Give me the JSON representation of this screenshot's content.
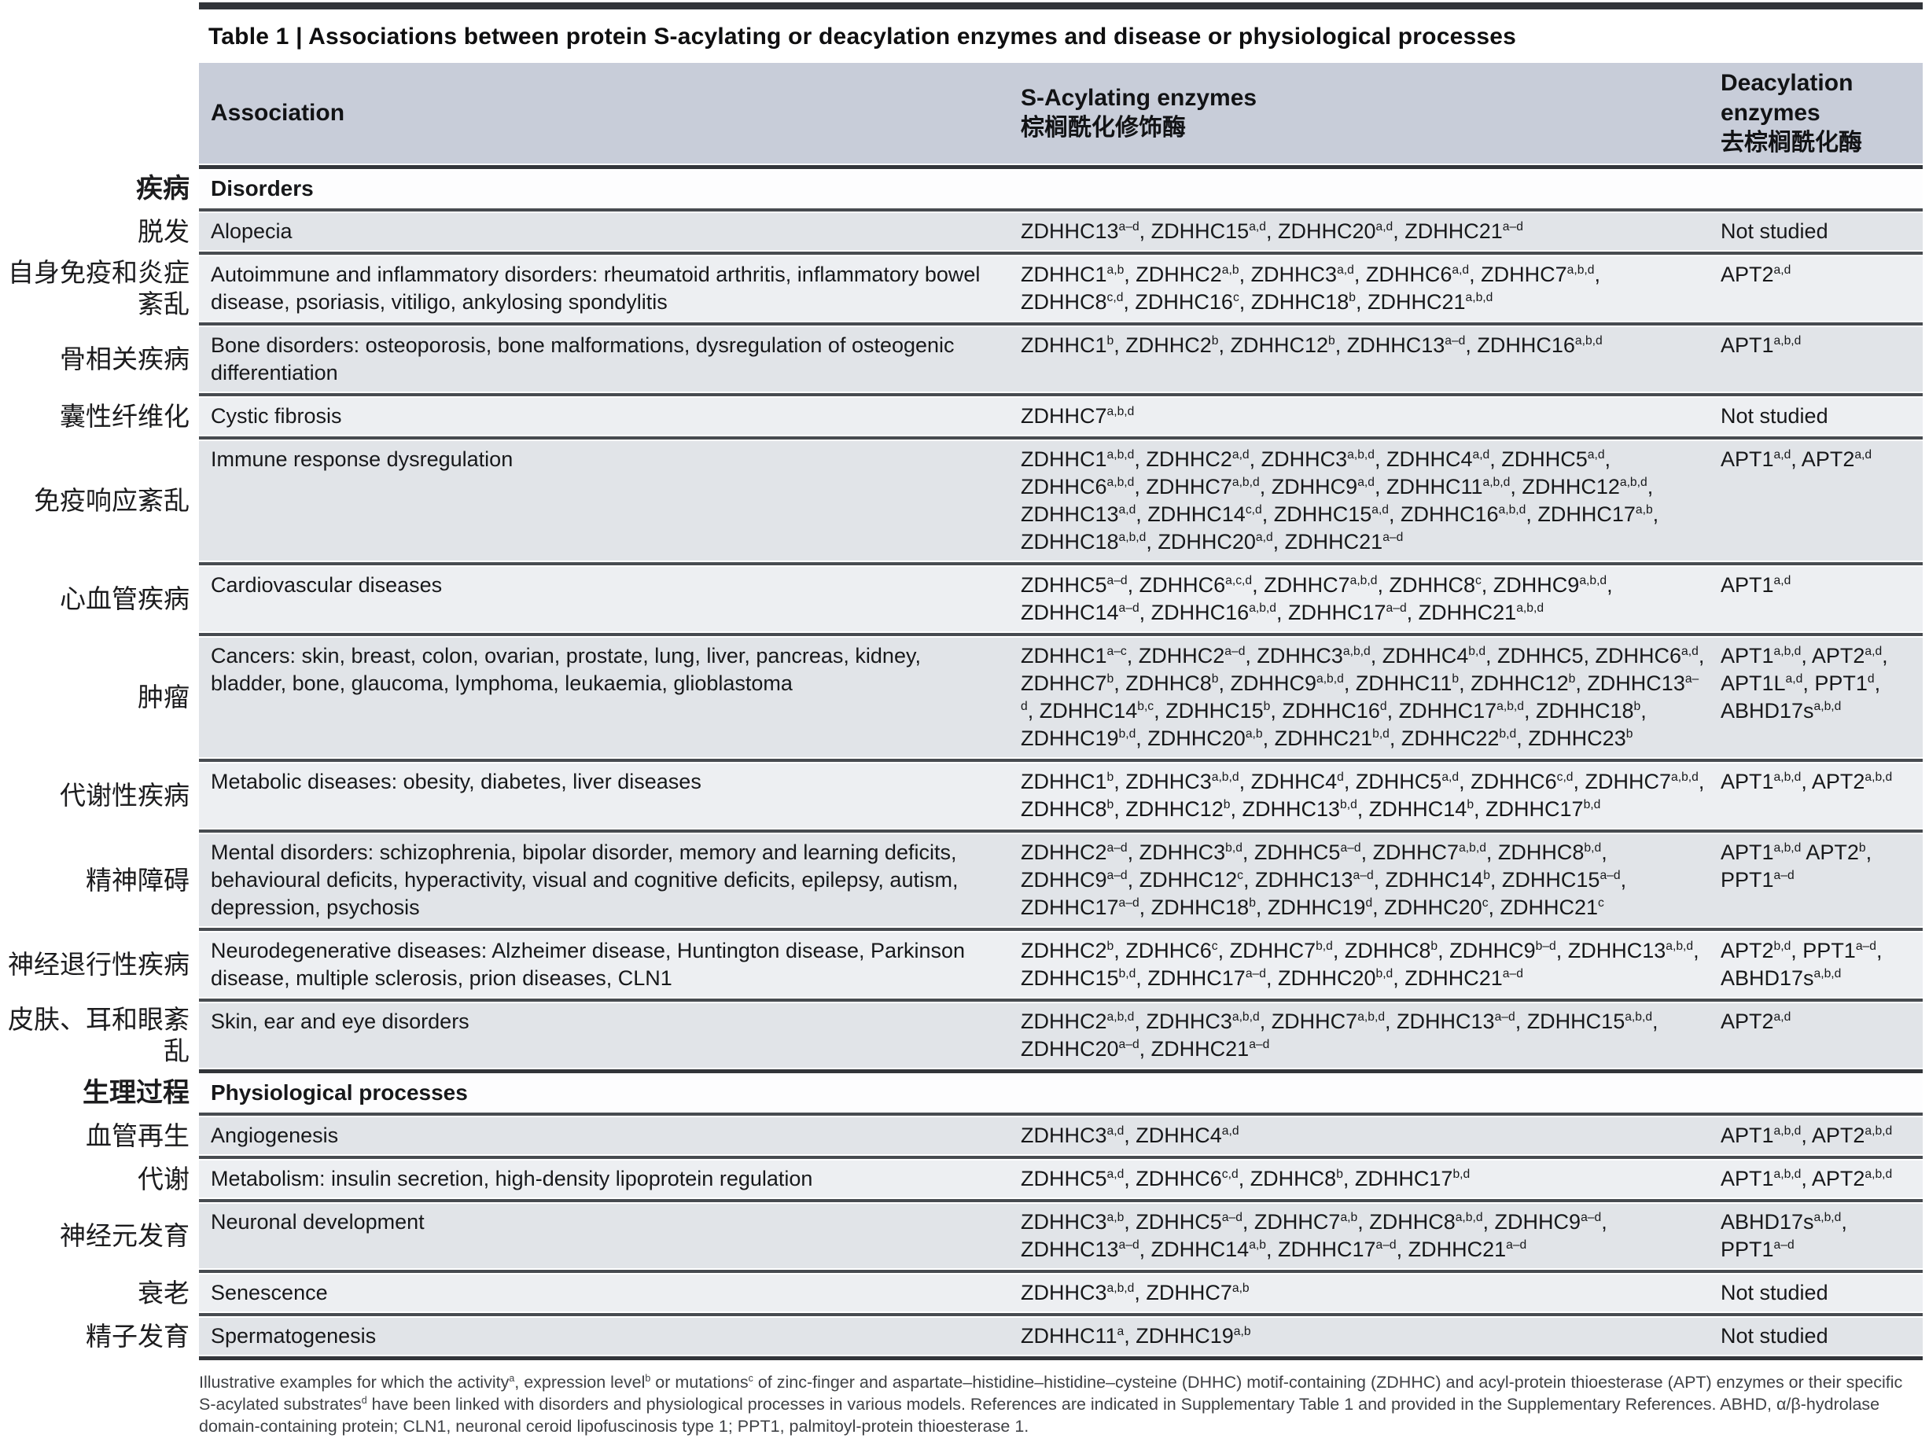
{
  "title": "Table 1 | Associations between protein S-acylating or deacylation enzymes and disease or physiological processes",
  "columns": {
    "association": "Association",
    "sacylating_en": "S-Acylating enzymes",
    "sacylating_zh": "棕榈酰化修饰酶",
    "deacylation_en": "Deacylation enzymes",
    "deacylation_zh": "去棕榈酰化酶"
  },
  "colors": {
    "header_band": "#c8cdd9",
    "row_dark": "#e1e4e8",
    "row_light": "#edeff2",
    "rule": "#474b50",
    "rule_dark": "#32353a"
  },
  "sections": [
    {
      "zh": "疾病",
      "label": "Disorders",
      "rows": [
        {
          "zh": "脱发",
          "association": "Alopecia",
          "sacylating": "ZDHHC13^a–d^, ZDHHC15^a,d^, ZDHHC20^a,d^, ZDHHC21^a–d^",
          "deacylation": "Not studied"
        },
        {
          "zh": "自身免疫和炎症紊乱",
          "association": "Autoimmune and inflammatory disorders: rheumatoid arthritis, inflammatory bowel disease, psoriasis, vitiligo, ankylosing spondylitis",
          "sacylating": "ZDHHC1^a,b^, ZDHHC2^a,b^, ZDHHC3^a,d^, ZDHHC6^a,d^, ZDHHC7^a,b,d^, ZDHHC8^c,d^, ZDHHC16^c^, ZDHHC18^b^, ZDHHC21^a,b,d^",
          "deacylation": "APT2^a,d^"
        },
        {
          "zh": "骨相关疾病",
          "association": "Bone disorders: osteoporosis, bone malformations, dysregulation of osteogenic differentiation",
          "sacylating": "ZDHHC1^b^, ZDHHC2^b^, ZDHHC12^b^, ZDHHC13^a–d^, ZDHHC16^a,b,d^",
          "deacylation": "APT1^a,b,d^"
        },
        {
          "zh": "囊性纤维化",
          "association": "Cystic fibrosis",
          "sacylating": "ZDHHC7^a,b,d^",
          "deacylation": "Not studied"
        },
        {
          "zh": "免疫响应紊乱",
          "association": "Immune response dysregulation",
          "sacylating": "ZDHHC1^a,b,d^, ZDHHC2^a,d^, ZDHHC3^a,b,d^, ZDHHC4^a,d^, ZDHHC5^a,d^, ZDHHC6^a,b,d^, ZDHHC7^a,b,d^, ZDHHC9^a,d^, ZDHHC11^a,b,d^, ZDHHC12^a,b,d^, ZDHHC13^a,d^, ZDHHC14^c,d^, ZDHHC15^a,d^, ZDHHC16^a,b,d^, ZDHHC17^a,b^, ZDHHC18^a,b,d^, ZDHHC20^a,d^, ZDHHC21^a–d^",
          "deacylation": "APT1^a,d^, APT2^a,d^"
        },
        {
          "zh": "心血管疾病",
          "association": "Cardiovascular diseases",
          "sacylating": "ZDHHC5^a–d^, ZDHHC6^a,c,d^, ZDHHC7^a,b,d^, ZDHHC8^c^, ZDHHC9^a,b,d^, ZDHHC14^a–d^, ZDHHC16^a,b,d^, ZDHHC17^a–d^, ZDHHC21^a,b,d^",
          "deacylation": "APT1^a,d^"
        },
        {
          "zh": "肿瘤",
          "association": "Cancers: skin, breast, colon, ovarian, prostate, lung, liver, pancreas, kidney, bladder, bone, glaucoma, lymphoma, leukaemia, glioblastoma",
          "sacylating": "ZDHHC1^a–c^, ZDHHC2^a–d^, ZDHHC3^a,b,d^, ZDHHC4^b,d^, ZDHHC5, ZDHHC6^a,d^, ZDHHC7^b^, ZDHHC8^b^, ZDHHC9^a,b,d^, ZDHHC11^b^, ZDHHC12^b^, ZDHHC13^a–d^, ZDHHC14^b,c^, ZDHHC15^b^, ZDHHC16^d^, ZDHHC17^a,b,d^, ZDHHC18^b^, ZDHHC19^b,d^, ZDHHC20^a,b^, ZDHHC21^b,d^, ZDHHC22^b,d^, ZDHHC23^b^",
          "deacylation": "APT1^a,b,d^, APT2^a,d^, APT1L^a,d^, PPT1^d^, ABHD17s^a,b,d^"
        },
        {
          "zh": "代谢性疾病",
          "association": "Metabolic diseases: obesity, diabetes, liver diseases",
          "sacylating": "ZDHHC1^b^, ZDHHC3^a,b,d^, ZDHHC4^d^, ZDHHC5^a,d^, ZDHHC6^c,d^, ZDHHC7^a,b,d^, ZDHHC8^b^, ZDHHC12^b^, ZDHHC13^b,d^, ZDHHC14^b^, ZDHHC17^b,d^",
          "deacylation": "APT1^a,b,d^, APT2^a,b,d^"
        },
        {
          "zh": "精神障碍",
          "association": "Mental disorders: schizophrenia, bipolar disorder, memory and learning deficits, behavioural deficits, hyperactivity, visual and cognitive deficits, epilepsy, autism, depression, psychosis",
          "sacylating": "ZDHHC2^a–d^, ZDHHC3^b,d^, ZDHHC5^a–d^, ZDHHC7^a,b,d^, ZDHHC8^b,d^, ZDHHC9^a–d^, ZDHHC12^c^, ZDHHC13^a–d^, ZDHHC14^b^, ZDHHC15^a–d^, ZDHHC17^a–d^, ZDHHC18^b^, ZDHHC19^d^, ZDHHC20^c^, ZDHHC21^c^",
          "deacylation": "APT1^a,b,d^ APT2^b^, PPT1^a–d^"
        },
        {
          "zh": "神经退行性疾病",
          "association": "Neurodegenerative diseases: Alzheimer disease, Huntington disease, Parkinson disease, multiple sclerosis, prion diseases, CLN1",
          "sacylating": "ZDHHC2^b^, ZDHHC6^c^, ZDHHC7^b,d^, ZDHHC8^b^, ZDHHC9^b–d^, ZDHHC13^a,b,d^, ZDHHC15^b,d^, ZDHHC17^a–d^, ZDHHC20^b,d^, ZDHHC21^a–d^",
          "deacylation": "APT2^b,d^, PPT1^a–d^, ABHD17s^a,b,d^"
        },
        {
          "zh": "皮肤、耳和眼紊乱",
          "association": "Skin, ear and eye disorders",
          "sacylating": "ZDHHC2^a,b,d^, ZDHHC3^a,b,d^, ZDHHC7^a,b,d^, ZDHHC13^a–d^, ZDHHC15^a,b,d^, ZDHHC20^a–d^, ZDHHC21^a–d^",
          "deacylation": "APT2^a,d^"
        }
      ]
    },
    {
      "zh": "生理过程",
      "label": "Physiological processes",
      "rows": [
        {
          "zh": "血管再生",
          "association": "Angiogenesis",
          "sacylating": "ZDHHC3^a,d^, ZDHHC4^a,d^",
          "deacylation": "APT1^a,b,d^, APT2^a,b,d^"
        },
        {
          "zh": "代谢",
          "association": "Metabolism: insulin secretion, high-density lipoprotein regulation",
          "sacylating": "ZDHHC5^a,d^, ZDHHC6^c,d^, ZDHHC8^b^, ZDHHC17^b,d^",
          "deacylation": "APT1^a,b,d^, APT2^a,b,d^"
        },
        {
          "zh": "神经元发育",
          "association": "Neuronal development",
          "sacylating": "ZDHHC3^a,b^, ZDHHC5^a–d^, ZDHHC7^a,b^, ZDHHC8^a,b,d^, ZDHHC9^a–d^, ZDHHC13^a–d^, ZDHHC14^a,b^, ZDHHC17^a–d^, ZDHHC21^a–d^",
          "deacylation": "ABHD17s^a,b,d^, PPT1^a–d^"
        },
        {
          "zh": "衰老",
          "association": "Senescence",
          "sacylating": "ZDHHC3^a,b,d^, ZDHHC7^a,b^",
          "deacylation": "Not studied"
        },
        {
          "zh": "精子发育",
          "association": "Spermatogenesis",
          "sacylating": "ZDHHC11^a^, ZDHHC19^a,b^",
          "deacylation": "Not studied"
        }
      ]
    }
  ],
  "footnote": "Illustrative examples for which the activity^a^, expression level^b^ or mutations^c^ of zinc-finger and aspartate–histidine–histidine–cysteine (DHHC) motif-containing (ZDHHC) and acyl-protein thioesterase (APT) enzymes or their specific S-acylated substrates^d^ have been linked with disorders and physiological processes in various models. References are indicated in Supplementary Table 1 and provided in the Supplementary References. ABHD, α/β-hydrolase domain-containing protein; CLN1, neuronal ceroid lipofuscinosis type 1; PPT1, palmitoyl-protein thioesterase 1."
}
